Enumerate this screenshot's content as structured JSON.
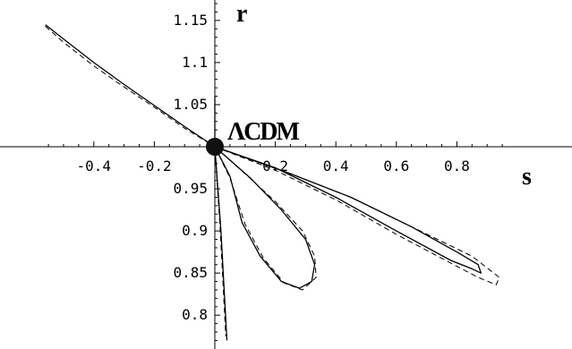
{
  "chart_data": {
    "type": "line",
    "title": "",
    "xlabel": "s",
    "ylabel": "r",
    "xlim": [
      -0.575,
      1.0
    ],
    "ylim": [
      0.77,
      1.16
    ],
    "grid": false,
    "legend": "none",
    "x_ticks": [
      -0.4,
      -0.2,
      0.2,
      0.4,
      0.6,
      0.8
    ],
    "x_tick_labels": [
      "-0.4",
      "-0.2",
      "0.2",
      "0.4",
      "0.6",
      "0.8"
    ],
    "y_ticks": [
      0.8,
      0.85,
      0.9,
      0.95,
      1.05,
      1.1,
      1.15
    ],
    "y_tick_labels": [
      "0.8",
      "0.85",
      "0.9",
      "0.95",
      "1.05",
      "1.1",
      "1.15"
    ],
    "reference_point": {
      "label": "ΛCDM",
      "s": 0.0,
      "r": 1.0
    },
    "series": [
      {
        "style": "solid",
        "points": [
          [
            -0.56,
            1.145
          ],
          [
            -0.5,
            1.128
          ],
          [
            -0.4,
            1.1
          ],
          [
            -0.3,
            1.074
          ],
          [
            -0.2,
            1.049
          ],
          [
            -0.1,
            1.024
          ],
          [
            0.0,
            1.0
          ]
        ]
      },
      {
        "style": "dashed",
        "points": [
          [
            -0.56,
            1.143
          ],
          [
            -0.5,
            1.124
          ],
          [
            -0.4,
            1.096
          ],
          [
            -0.3,
            1.071
          ],
          [
            -0.2,
            1.047
          ],
          [
            -0.1,
            1.022
          ],
          [
            0.0,
            1.0
          ]
        ]
      },
      {
        "style": "solid",
        "points": [
          [
            0.0,
            1.0
          ],
          [
            0.2,
            0.975
          ],
          [
            0.4,
            0.94
          ],
          [
            0.6,
            0.9
          ],
          [
            0.78,
            0.865
          ],
          [
            0.85,
            0.855
          ],
          [
            0.88,
            0.85
          ],
          [
            0.87,
            0.86
          ],
          [
            0.8,
            0.875
          ],
          [
            0.65,
            0.905
          ],
          [
            0.45,
            0.94
          ],
          [
            0.25,
            0.968
          ],
          [
            0.0,
            1.0
          ]
        ]
      },
      {
        "style": "dashed",
        "points": [
          [
            0.0,
            1.0
          ],
          [
            0.2,
            0.972
          ],
          [
            0.4,
            0.937
          ],
          [
            0.6,
            0.896
          ],
          [
            0.8,
            0.858
          ],
          [
            0.87,
            0.845
          ],
          [
            0.93,
            0.836
          ],
          [
            0.94,
            0.845
          ],
          [
            0.85,
            0.87
          ],
          [
            0.65,
            0.905
          ],
          [
            0.45,
            0.94
          ],
          [
            0.25,
            0.968
          ],
          [
            0.0,
            1.0
          ]
        ]
      },
      {
        "style": "solid",
        "points": [
          [
            0.0,
            1.0
          ],
          [
            0.05,
            0.965
          ],
          [
            0.09,
            0.91
          ],
          [
            0.15,
            0.87
          ],
          [
            0.22,
            0.84
          ],
          [
            0.28,
            0.832
          ],
          [
            0.32,
            0.84
          ],
          [
            0.33,
            0.86
          ],
          [
            0.3,
            0.89
          ],
          [
            0.22,
            0.925
          ],
          [
            0.12,
            0.962
          ],
          [
            0.0,
            1.0
          ]
        ]
      },
      {
        "style": "dashed",
        "points": [
          [
            0.0,
            1.0
          ],
          [
            0.05,
            0.963
          ],
          [
            0.1,
            0.908
          ],
          [
            0.16,
            0.868
          ],
          [
            0.23,
            0.838
          ],
          [
            0.29,
            0.83
          ],
          [
            0.335,
            0.845
          ],
          [
            0.33,
            0.87
          ],
          [
            0.29,
            0.9
          ],
          [
            0.2,
            0.935
          ],
          [
            0.1,
            0.968
          ],
          [
            0.0,
            1.0
          ]
        ]
      },
      {
        "style": "solid",
        "points": [
          [
            0.0,
            1.06
          ],
          [
            0.0,
            1.0
          ],
          [
            0.02,
            0.9
          ],
          [
            0.04,
            0.77
          ]
        ]
      },
      {
        "style": "dashed",
        "points": [
          [
            0.0,
            1.0
          ],
          [
            0.018,
            0.9
          ],
          [
            0.036,
            0.775
          ]
        ]
      }
    ]
  }
}
